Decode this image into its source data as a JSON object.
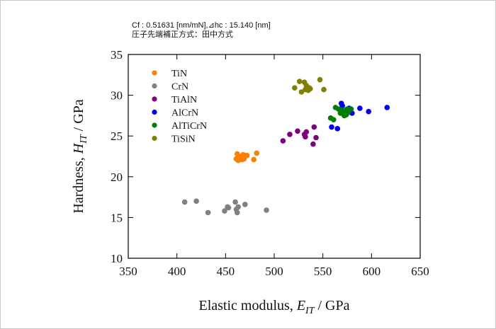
{
  "header": {
    "line1": "Cf : 0.51631 [nm/mN],⊿hc : 15.140 [nm]",
    "line2": "圧子先端補正方式：田中方式"
  },
  "colors": {
    "TiN": "#ff8000",
    "CrN": "#808080",
    "TiAlN": "#800080",
    "AlCrN": "#0000ff",
    "AlTiCrN": "#008000",
    "TiSiN": "#808000"
  },
  "chart_data": {
    "type": "scatter",
    "xlabel_main": "Elastic modulus, ",
    "xlabel_sym": "E",
    "xlabel_sub": "IT",
    "xlabel_unit": " / GPa",
    "ylabel_main": "Hardness, ",
    "ylabel_sym": "H",
    "ylabel_sub": "IT",
    "ylabel_unit": " / GPa",
    "xlim": [
      350,
      650
    ],
    "ylim": [
      10,
      35
    ],
    "xticks": [
      350,
      400,
      450,
      500,
      550,
      600,
      650
    ],
    "yticks": [
      10,
      15,
      20,
      25,
      30,
      35
    ],
    "legend_position": "upper-left",
    "grid": false,
    "series": [
      {
        "name": "TiN",
        "points": [
          [
            461,
            22.2
          ],
          [
            462,
            22.8
          ],
          [
            463,
            22.0
          ],
          [
            465,
            22.5
          ],
          [
            466,
            22.3
          ],
          [
            467,
            22.1
          ],
          [
            468,
            22.7
          ],
          [
            469,
            22.2
          ],
          [
            470,
            22.6
          ],
          [
            472,
            22.6
          ],
          [
            479,
            22.1
          ],
          [
            482,
            22.9
          ]
        ]
      },
      {
        "name": "CrN",
        "points": [
          [
            408,
            16.9
          ],
          [
            420,
            17.0
          ],
          [
            432,
            15.6
          ],
          [
            449,
            15.8
          ],
          [
            452,
            16.3
          ],
          [
            453,
            16.2
          ],
          [
            460,
            16.9
          ],
          [
            461,
            16.0
          ],
          [
            462,
            15.6
          ],
          [
            463,
            16.3
          ],
          [
            470,
            16.6
          ],
          [
            492,
            15.9
          ]
        ]
      },
      {
        "name": "TiAlN",
        "points": [
          [
            509,
            24.4
          ],
          [
            516,
            25.2
          ],
          [
            524,
            25.6
          ],
          [
            531,
            25.2
          ],
          [
            532,
            24.9
          ],
          [
            533,
            25.5
          ],
          [
            540,
            24.0
          ],
          [
            541,
            26.1
          ],
          [
            543,
            24.8
          ]
        ]
      },
      {
        "name": "AlCrN",
        "points": [
          [
            559,
            26.1
          ],
          [
            565,
            25.9
          ],
          [
            569,
            29.0
          ],
          [
            570,
            28.7
          ],
          [
            572,
            27.9
          ],
          [
            574,
            28.2
          ],
          [
            577,
            28.4
          ],
          [
            580,
            27.8
          ],
          [
            588,
            28.4
          ],
          [
            597,
            28.0
          ],
          [
            616,
            28.5
          ]
        ]
      },
      {
        "name": "AlTiCrN",
        "points": [
          [
            558,
            27.2
          ],
          [
            561,
            27.0
          ],
          [
            563,
            28.5
          ],
          [
            566,
            28.3
          ],
          [
            568,
            27.8
          ],
          [
            569,
            28.2
          ],
          [
            570,
            28.0
          ],
          [
            571,
            27.7
          ],
          [
            572,
            27.5
          ],
          [
            573,
            28.1
          ],
          [
            574,
            27.6
          ],
          [
            575,
            28.3
          ],
          [
            576,
            27.9
          ],
          [
            577,
            28.2
          ],
          [
            579,
            28.3
          ]
        ]
      },
      {
        "name": "TiSiN",
        "points": [
          [
            521,
            30.9
          ],
          [
            526,
            31.7
          ],
          [
            528,
            30.4
          ],
          [
            531,
            31.6
          ],
          [
            532,
            30.7
          ],
          [
            533,
            31.2
          ],
          [
            534,
            30.9
          ],
          [
            535,
            30.6
          ],
          [
            536,
            30.9
          ],
          [
            537,
            30.8
          ],
          [
            547,
            31.9
          ],
          [
            551,
            30.7
          ]
        ]
      }
    ]
  }
}
